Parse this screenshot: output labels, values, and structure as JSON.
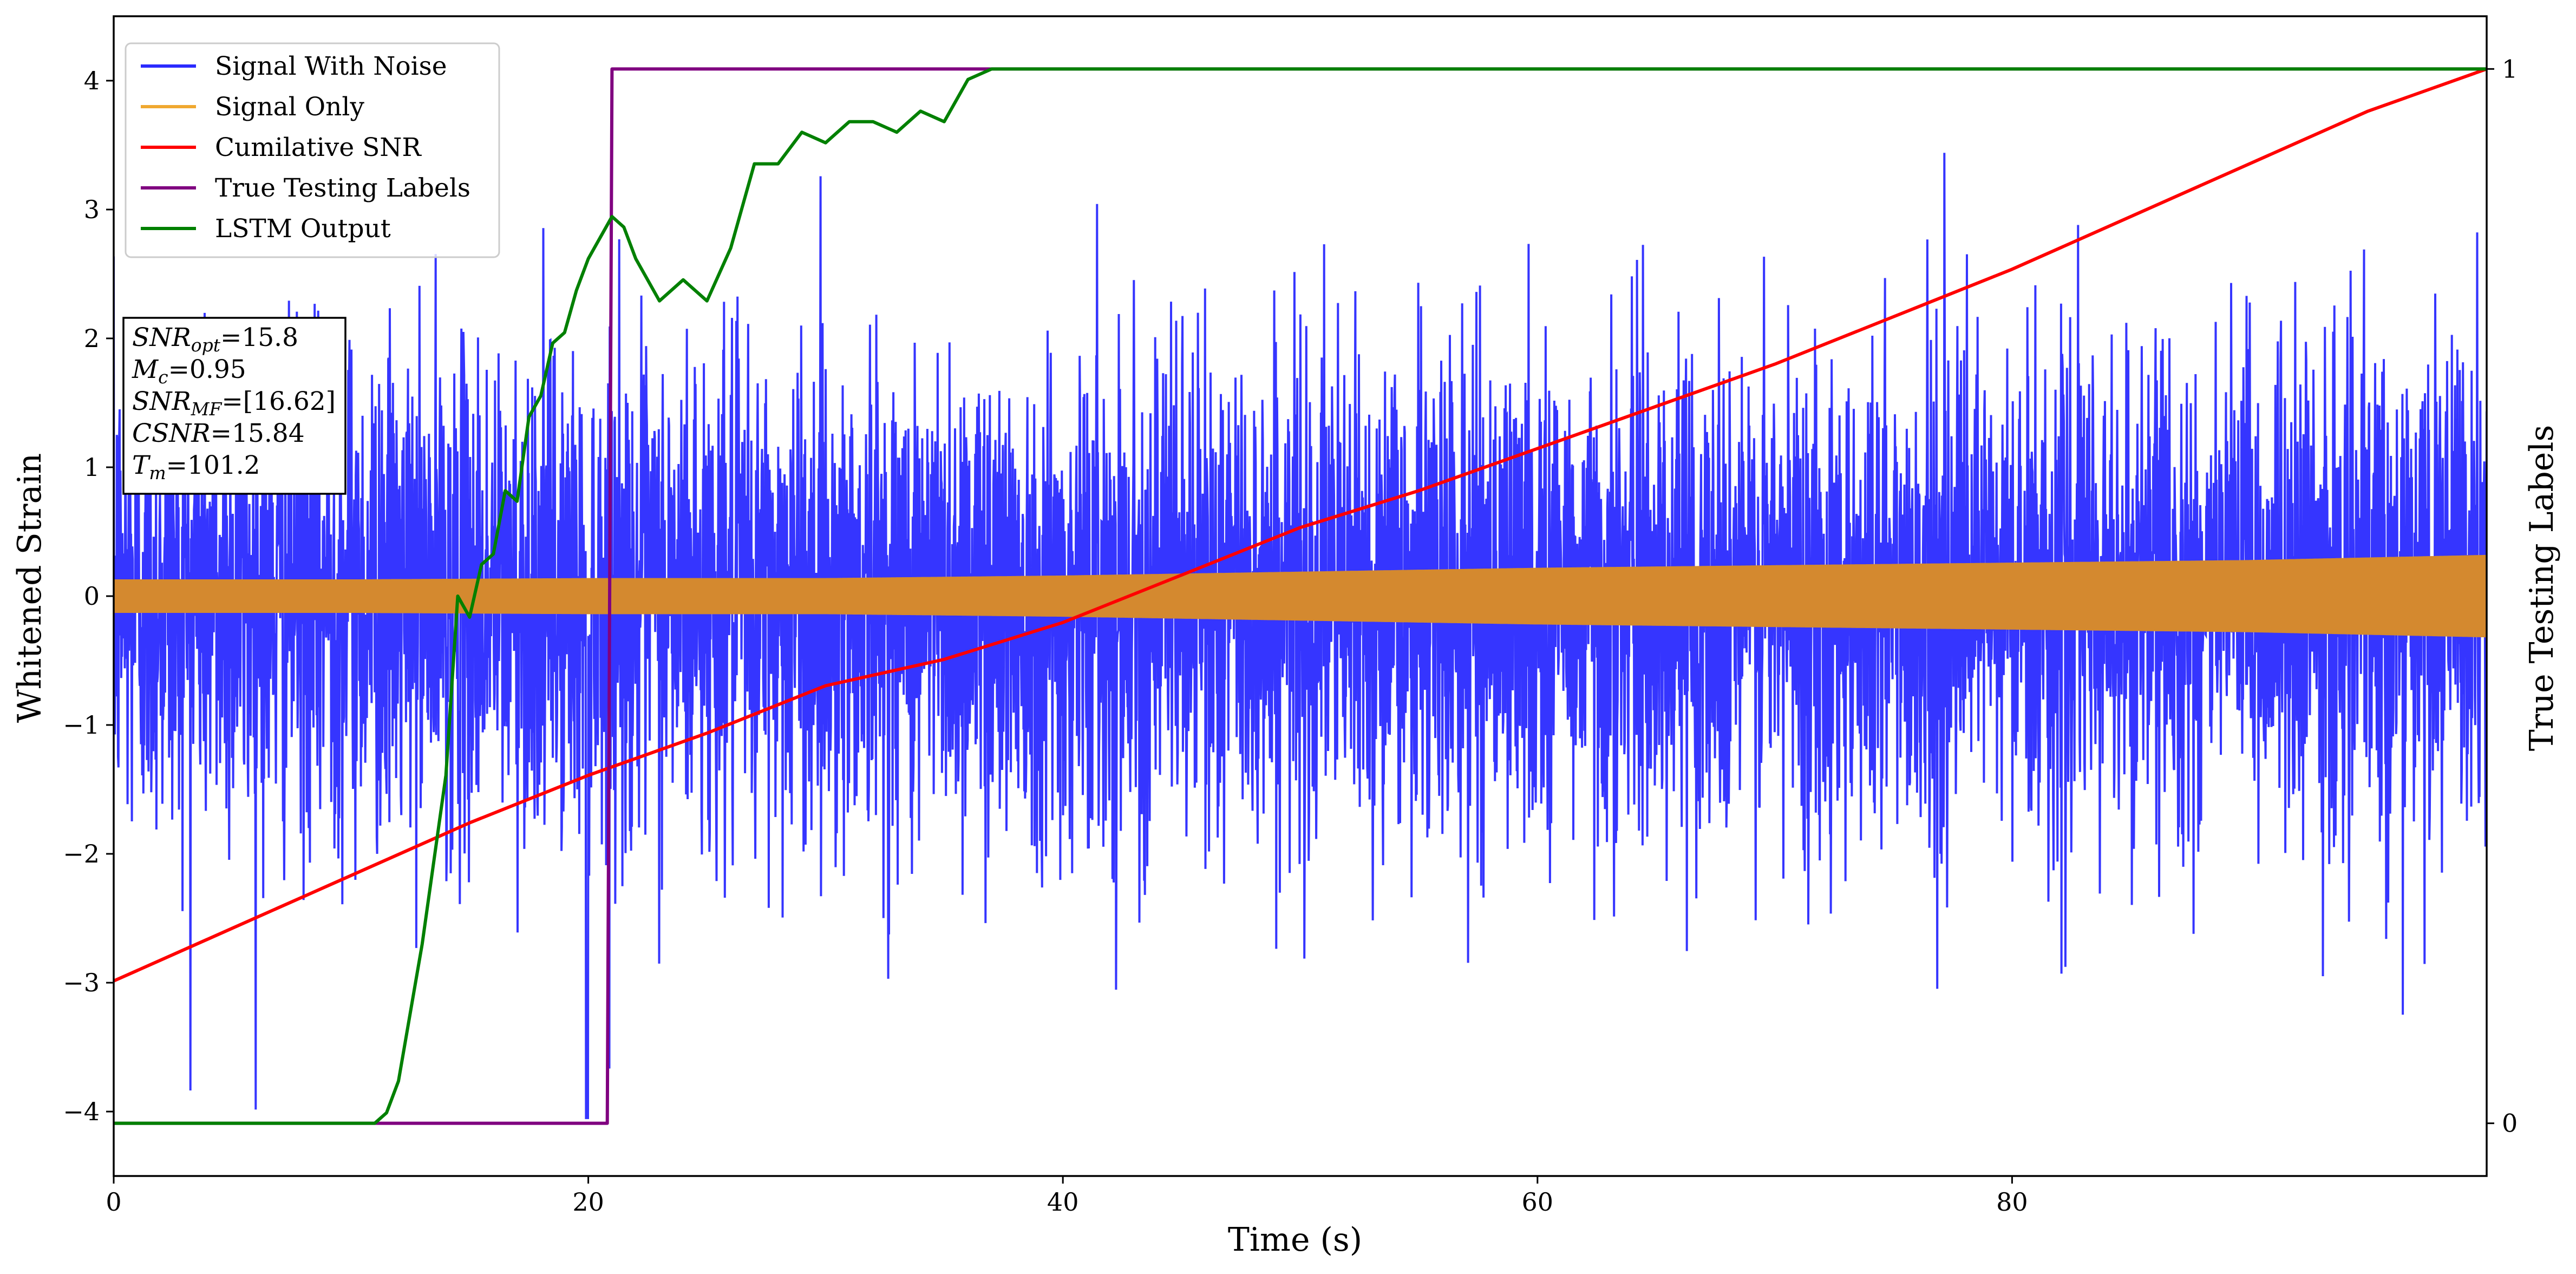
{
  "chart_data": {
    "type": "line",
    "xlabel": "Time (s)",
    "ylabel": "Whitened Strain",
    "y2label": "True Testing Labels",
    "xlim": [
      0,
      100
    ],
    "ylim": [
      -4.5,
      4.5
    ],
    "y2lim": [
      -0.05,
      1.05
    ],
    "xticks": [
      0,
      20,
      40,
      60,
      80
    ],
    "xtick_labels": [
      "0",
      "20",
      "40",
      "60",
      "80"
    ],
    "yticks": [
      -4,
      -3,
      -2,
      -1,
      0,
      1,
      2,
      3,
      4
    ],
    "ytick_labels": [
      "−4",
      "−3",
      "−2",
      "−1",
      "0",
      "1",
      "2",
      "3",
      "4"
    ],
    "y2ticks": [
      0,
      1
    ],
    "y2tick_labels": [
      "0",
      "1"
    ],
    "legend_position": "upper-left",
    "grid": false,
    "series": [
      {
        "name": "Signal With Noise",
        "color": "#2a2aff",
        "axis": "left",
        "description_range": [
          -4.0,
          4.0
        ],
        "band_std": 1.0
      },
      {
        "name": "Signal Only",
        "color": "#f0a830",
        "axis": "left",
        "envelope": {
          "x": [
            0,
            10,
            20,
            30,
            40,
            50,
            60,
            70,
            80,
            90,
            100
          ],
          "amp": [
            0.13,
            0.13,
            0.14,
            0.14,
            0.16,
            0.19,
            0.22,
            0.24,
            0.26,
            0.28,
            0.32
          ]
        }
      },
      {
        "name": "Cumilative SNR",
        "color": "#ff0000",
        "axis": "right",
        "x": [
          0,
          5,
          10,
          15,
          20,
          25,
          30,
          35,
          40,
          45,
          50,
          55,
          60,
          65,
          70,
          75,
          80,
          85,
          90,
          95,
          100
        ],
        "y": [
          0.135,
          0.185,
          0.235,
          0.285,
          0.33,
          0.37,
          0.415,
          0.44,
          0.475,
          0.52,
          0.565,
          0.6,
          0.64,
          0.68,
          0.72,
          0.765,
          0.81,
          0.86,
          0.91,
          0.96,
          1.0
        ]
      },
      {
        "name": "True Testing Labels",
        "color": "#800080",
        "axis": "right",
        "x": [
          0,
          20.0,
          20.0,
          20.1,
          20.1,
          20.8,
          21.0,
          100
        ],
        "y": [
          0,
          0,
          0.0,
          0.0,
          0,
          0,
          1,
          1
        ]
      },
      {
        "name": "LSTM Output",
        "color": "#008000",
        "axis": "right",
        "x": [
          0,
          11,
          11.5,
          12,
          13,
          14,
          14.5,
          15,
          15.5,
          16,
          16.5,
          17,
          17.5,
          18,
          18.5,
          19,
          19.5,
          20,
          20.5,
          21,
          21.5,
          22,
          23,
          24,
          25,
          26,
          27,
          28,
          29,
          30,
          31,
          32,
          33,
          34,
          35,
          36,
          37,
          38,
          39,
          40,
          42,
          44,
          46,
          48,
          50,
          55,
          60,
          70,
          80,
          90,
          100
        ],
        "y": [
          0,
          0.0,
          0.01,
          0.04,
          0.17,
          0.33,
          0.5,
          0.48,
          0.53,
          0.54,
          0.6,
          0.59,
          0.67,
          0.69,
          0.74,
          0.75,
          0.79,
          0.82,
          0.84,
          0.86,
          0.85,
          0.82,
          0.78,
          0.8,
          0.78,
          0.83,
          0.91,
          0.91,
          0.94,
          0.93,
          0.95,
          0.95,
          0.94,
          0.96,
          0.95,
          0.99,
          1.0,
          1.0,
          1.0,
          1.0,
          1.0,
          1.0,
          1.0,
          1.0,
          1.0,
          1.0,
          1.0,
          1.0,
          1.0,
          1.0,
          1.0
        ]
      }
    ],
    "annotations": [
      {
        "base": "SNR",
        "sub": "opt",
        "value": "=15.8"
      },
      {
        "base": "M",
        "sub": "c",
        "value": "=0.95"
      },
      {
        "base": "SNR",
        "sub": "MF",
        "value": "=[16.62]"
      },
      {
        "base": "CSNR",
        "sub": "",
        "value": "=15.84"
      },
      {
        "base": "T",
        "sub": "m",
        "value": "=101.2"
      }
    ]
  }
}
